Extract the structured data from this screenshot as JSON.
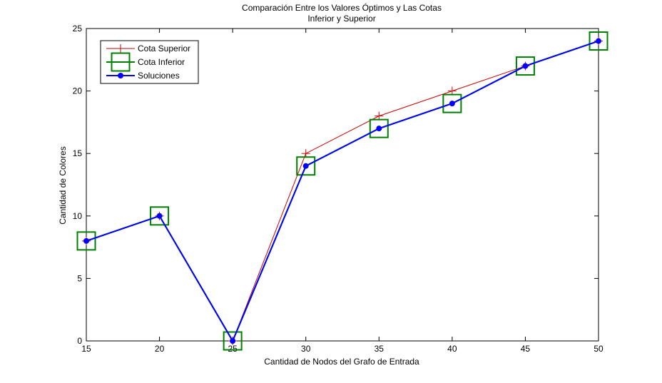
{
  "chart_data": {
    "type": "line",
    "title": [
      "Comparación Entre los Valores Óptimos y Las Cotas",
      "Inferior y Superior"
    ],
    "xlabel": "Cantidad de Nodos del Grafo de Entrada",
    "ylabel": "Cantidad de Colores",
    "xlim": [
      15,
      50
    ],
    "ylim": [
      0,
      25
    ],
    "xticks": [
      15,
      20,
      25,
      30,
      35,
      40,
      45,
      50
    ],
    "yticks": [
      0,
      5,
      10,
      15,
      20,
      25
    ],
    "grid": false,
    "legend_position": "top-left",
    "x": [
      15,
      20,
      25,
      30,
      35,
      40,
      45,
      50
    ],
    "series": [
      {
        "name": "Cota Superior",
        "color": "#cc0000",
        "marker": "plus",
        "values": [
          8,
          10,
          0,
          15,
          18,
          20,
          22,
          24
        ]
      },
      {
        "name": "Cota Inferior",
        "color": "#008000",
        "marker": "square",
        "values": [
          8,
          10,
          0,
          14,
          17,
          19,
          22,
          24
        ]
      },
      {
        "name": "Soluciones",
        "color": "#0000ff",
        "marker": "dot",
        "values": [
          8,
          10,
          0,
          14,
          17,
          19,
          22,
          24
        ]
      }
    ]
  }
}
